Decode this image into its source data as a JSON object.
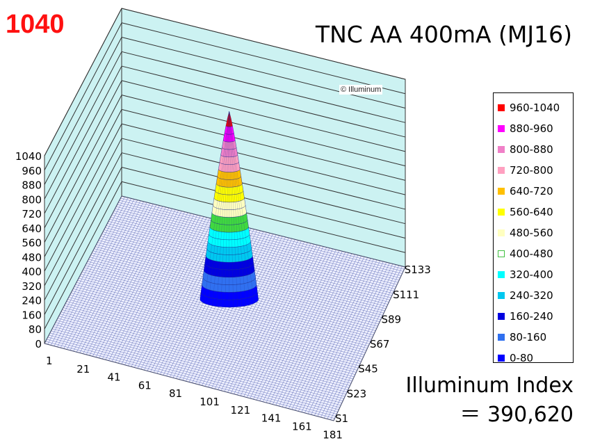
{
  "peak_label": "1040",
  "title": "TNC AA 400mA (MJ16)",
  "copyright": "© Illuminum",
  "index_label": "Illuminum Index",
  "index_value": "＝ 390,620",
  "chart_data": {
    "type": "surface3d",
    "title": "TNC AA 400mA (MJ16)",
    "zlim": [
      0,
      1040
    ],
    "z_ticks": [
      "0",
      "80",
      "160",
      "240",
      "320",
      "400",
      "480",
      "560",
      "640",
      "720",
      "800",
      "880",
      "960",
      "1040"
    ],
    "x_ticks": [
      "1",
      "21",
      "41",
      "61",
      "81",
      "101",
      "121",
      "141",
      "161",
      "181"
    ],
    "y_ticks": [
      "S1",
      "S23",
      "S45",
      "S67",
      "S89",
      "S111",
      "S133"
    ],
    "peak_value": 1040,
    "peak_location": {
      "x": 91,
      "y": "S67"
    },
    "grid": true
  },
  "legend": [
    {
      "label": "960-1040",
      "color": "#ff0000"
    },
    {
      "label": "880-960",
      "color": "#ff00ff"
    },
    {
      "label": "800-880",
      "color": "#f080c8"
    },
    {
      "label": "720-800",
      "color": "#ffa0c0"
    },
    {
      "label": "640-720",
      "color": "#ffc000"
    },
    {
      "label": "560-640",
      "color": "#ffff00"
    },
    {
      "label": "480-560",
      "color": "#ffffc0"
    },
    {
      "label": "400-480",
      "color": "#ffffff"
    },
    {
      "label": "320-400",
      "color": "#00ffff"
    },
    {
      "label": "240-320",
      "color": "#00c8f0"
    },
    {
      "label": "160-240",
      "color": "#0000e0"
    },
    {
      "label": "80-160",
      "color": "#3070f0"
    },
    {
      "label": "0-80",
      "color": "#0000ff"
    }
  ]
}
